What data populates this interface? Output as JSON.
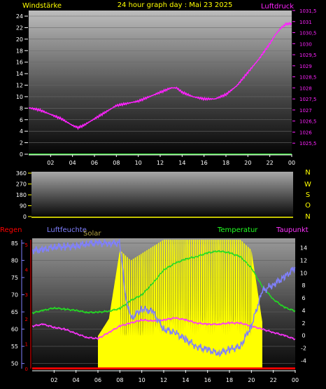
{
  "header": {
    "left_label": "Windstärke",
    "title": "24 hour graph day : Mai 23 2025",
    "right_label": "Luftdruck"
  },
  "bottom_header": {
    "regen": "Regen",
    "luftfeuchte": "Luftfeuchte",
    "solar": "Solar",
    "temperatur": "Temperatur",
    "taupunkt": "Taupunkt"
  },
  "direction_letters": [
    "N",
    "W",
    "S",
    "O",
    "N"
  ],
  "colors": {
    "pressure": "#ff22ff",
    "wind": "#44ff44",
    "humidity": "#8080ff",
    "solar": "#ffff00",
    "temperature": "#22dd22",
    "dewpoint": "#ff33ff",
    "rain": "#ff0000",
    "header_text": "#ffff00",
    "axis_text": "#ffffff"
  },
  "chart_data": [
    {
      "type": "line",
      "title": "24 hour graph day : Mai 23 2025",
      "x_ticks": [
        "02",
        "04",
        "06",
        "08",
        "10",
        "12",
        "14",
        "16",
        "18",
        "20",
        "22",
        "00"
      ],
      "x_hours_range": [
        0,
        24
      ],
      "left_axis": {
        "label": "Windstärke",
        "ticks": [
          "0",
          "2",
          "4",
          "6",
          "8",
          "10",
          "12",
          "14",
          "16",
          "18",
          "20",
          "22",
          "24"
        ],
        "range": [
          0,
          24
        ]
      },
      "right_axis": {
        "label": "Luftdruck",
        "ticks": [
          "1025,5",
          "1026",
          "1026,5",
          "1027",
          "1027,5",
          "1028",
          "1028,5",
          "1029",
          "1029,5",
          "1030",
          "1030,5",
          "1031",
          "1031,5"
        ],
        "range": [
          1025,
          1031.5
        ]
      },
      "series": [
        {
          "name": "Luftdruck",
          "axis": "right",
          "x": [
            0,
            1,
            2,
            3,
            4,
            4.5,
            5,
            6,
            7,
            8,
            9,
            10,
            11,
            12,
            13,
            13.5,
            14,
            15,
            16,
            17,
            18,
            19,
            20,
            21,
            22,
            22.5,
            23,
            23.5,
            24
          ],
          "y": [
            1027.1,
            1027.0,
            1026.8,
            1026.6,
            1026.3,
            1026.2,
            1026.3,
            1026.6,
            1026.9,
            1027.2,
            1027.3,
            1027.4,
            1027.6,
            1027.8,
            1028.0,
            1028.0,
            1027.8,
            1027.6,
            1027.5,
            1027.5,
            1027.7,
            1028.1,
            1028.7,
            1029.3,
            1030.0,
            1030.4,
            1030.7,
            1030.9,
            1030.9
          ]
        },
        {
          "name": "Windstärke",
          "axis": "left",
          "x": [
            0,
            24
          ],
          "y": [
            0,
            0
          ]
        }
      ]
    },
    {
      "type": "line",
      "title": "",
      "y_ticks": [
        "0",
        "90",
        "180",
        "270",
        "360"
      ],
      "range": [
        0,
        360
      ],
      "series": [
        {
          "name": "Windrichtung",
          "x": [
            0,
            24
          ],
          "y": [
            0,
            0
          ]
        }
      ]
    },
    {
      "type": "line",
      "x_ticks": [
        "02",
        "04",
        "06",
        "08",
        "10",
        "12",
        "14",
        "16",
        "18",
        "20",
        "22",
        "00"
      ],
      "left_axis": {
        "label": "Luftfeuchte",
        "ticks": [
          "50",
          "55",
          "60",
          "65",
          "70",
          "75",
          "80",
          "85"
        ],
        "range": [
          48.5,
          86
        ]
      },
      "rain_axis": {
        "label": "Regen",
        "ticks": [
          "0",
          "1",
          "2",
          "3",
          "4",
          "5"
        ],
        "range": [
          0,
          5.2
        ]
      },
      "right_axis": {
        "label": "Temperatur",
        "ticks": [
          "-4",
          "-2",
          "0",
          "2",
          "4",
          "6",
          "8",
          "10",
          "12",
          "14"
        ],
        "range": [
          -5.3,
          15.3
        ]
      },
      "series": [
        {
          "name": "Temperatur",
          "axis": "right",
          "x": [
            0,
            1,
            2,
            3,
            4,
            5,
            6,
            7,
            8,
            9,
            10,
            11,
            12,
            13,
            14,
            15,
            16,
            17,
            18,
            19,
            20,
            21,
            22,
            23,
            24
          ],
          "y": [
            3.6,
            4.0,
            4.4,
            4.2,
            4.0,
            3.7,
            3.7,
            3.9,
            4.3,
            5.6,
            6.5,
            8.3,
            10.5,
            11.5,
            12.2,
            12.6,
            13.2,
            13.5,
            13.2,
            12.6,
            10.8,
            7.8,
            5.8,
            4.5,
            3.9
          ]
        },
        {
          "name": "Taupunkt",
          "axis": "right",
          "x": [
            0,
            1,
            2,
            3,
            4,
            5,
            6,
            7,
            8,
            9,
            10,
            11,
            12,
            13,
            14,
            15,
            16,
            17,
            18,
            19,
            20,
            21,
            22,
            23,
            24
          ],
          "y": [
            1.5,
            1.8,
            1.3,
            1.0,
            0.3,
            -0.3,
            -0.5,
            0.5,
            1.5,
            2.0,
            2.5,
            2.3,
            2.5,
            2.8,
            2.5,
            2.0,
            1.8,
            1.8,
            2.0,
            2.0,
            1.5,
            1.0,
            0.5,
            0.0,
            -0.6
          ]
        },
        {
          "name": "Luftfeuchte",
          "axis": "left",
          "x": [
            0,
            1,
            2,
            3,
            4,
            5,
            6,
            7,
            8,
            8.5,
            9,
            10,
            11,
            12,
            13,
            14,
            15,
            16,
            17,
            18,
            19,
            20,
            21,
            22,
            23,
            24
          ],
          "y": [
            83,
            83,
            84,
            84,
            84,
            85,
            85,
            85,
            85,
            70,
            63,
            66,
            65,
            60,
            59,
            57,
            55,
            54,
            53,
            54,
            55,
            61,
            71,
            73,
            75,
            78
          ]
        },
        {
          "name": "Solar",
          "axis": "left",
          "x": [
            6,
            7,
            8,
            9,
            10,
            11,
            12,
            13,
            14,
            15,
            16,
            17,
            18,
            19,
            20,
            21
          ],
          "y": [
            58,
            63,
            83,
            80,
            82,
            84,
            86,
            86,
            86,
            86,
            86,
            86,
            86,
            86,
            83,
            62
          ]
        },
        {
          "name": "Regen",
          "axis": "rain",
          "x": [
            0,
            24
          ],
          "y": [
            0,
            0
          ]
        }
      ]
    }
  ]
}
